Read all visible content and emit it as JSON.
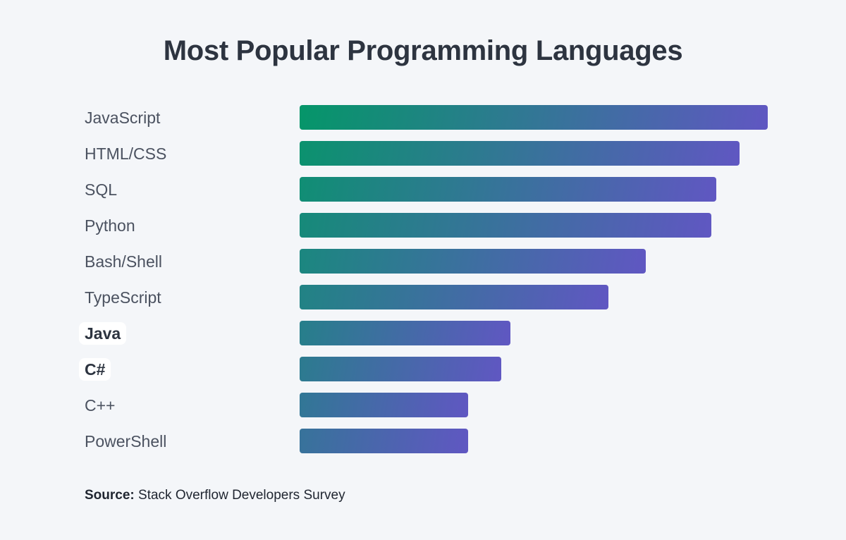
{
  "chart_data": {
    "type": "bar",
    "orientation": "horizontal",
    "title": "Most Popular Programming Languages",
    "categories": [
      "JavaScript",
      "HTML/CSS",
      "SQL",
      "Python",
      "Bash/Shell",
      "TypeScript",
      "Java",
      "C#",
      "C++",
      "PowerShell"
    ],
    "values": [
      100,
      94,
      89,
      88,
      74,
      66,
      45,
      43,
      36,
      36
    ],
    "highlighted": [
      "Java",
      "C#"
    ],
    "xlim": [
      0,
      100
    ],
    "grid": false,
    "colors": {
      "gradient_start": "#059669",
      "gradient_end": "#6057c2"
    }
  },
  "source": {
    "label": "Source:",
    "text": " Stack Overflow Developers Survey"
  }
}
